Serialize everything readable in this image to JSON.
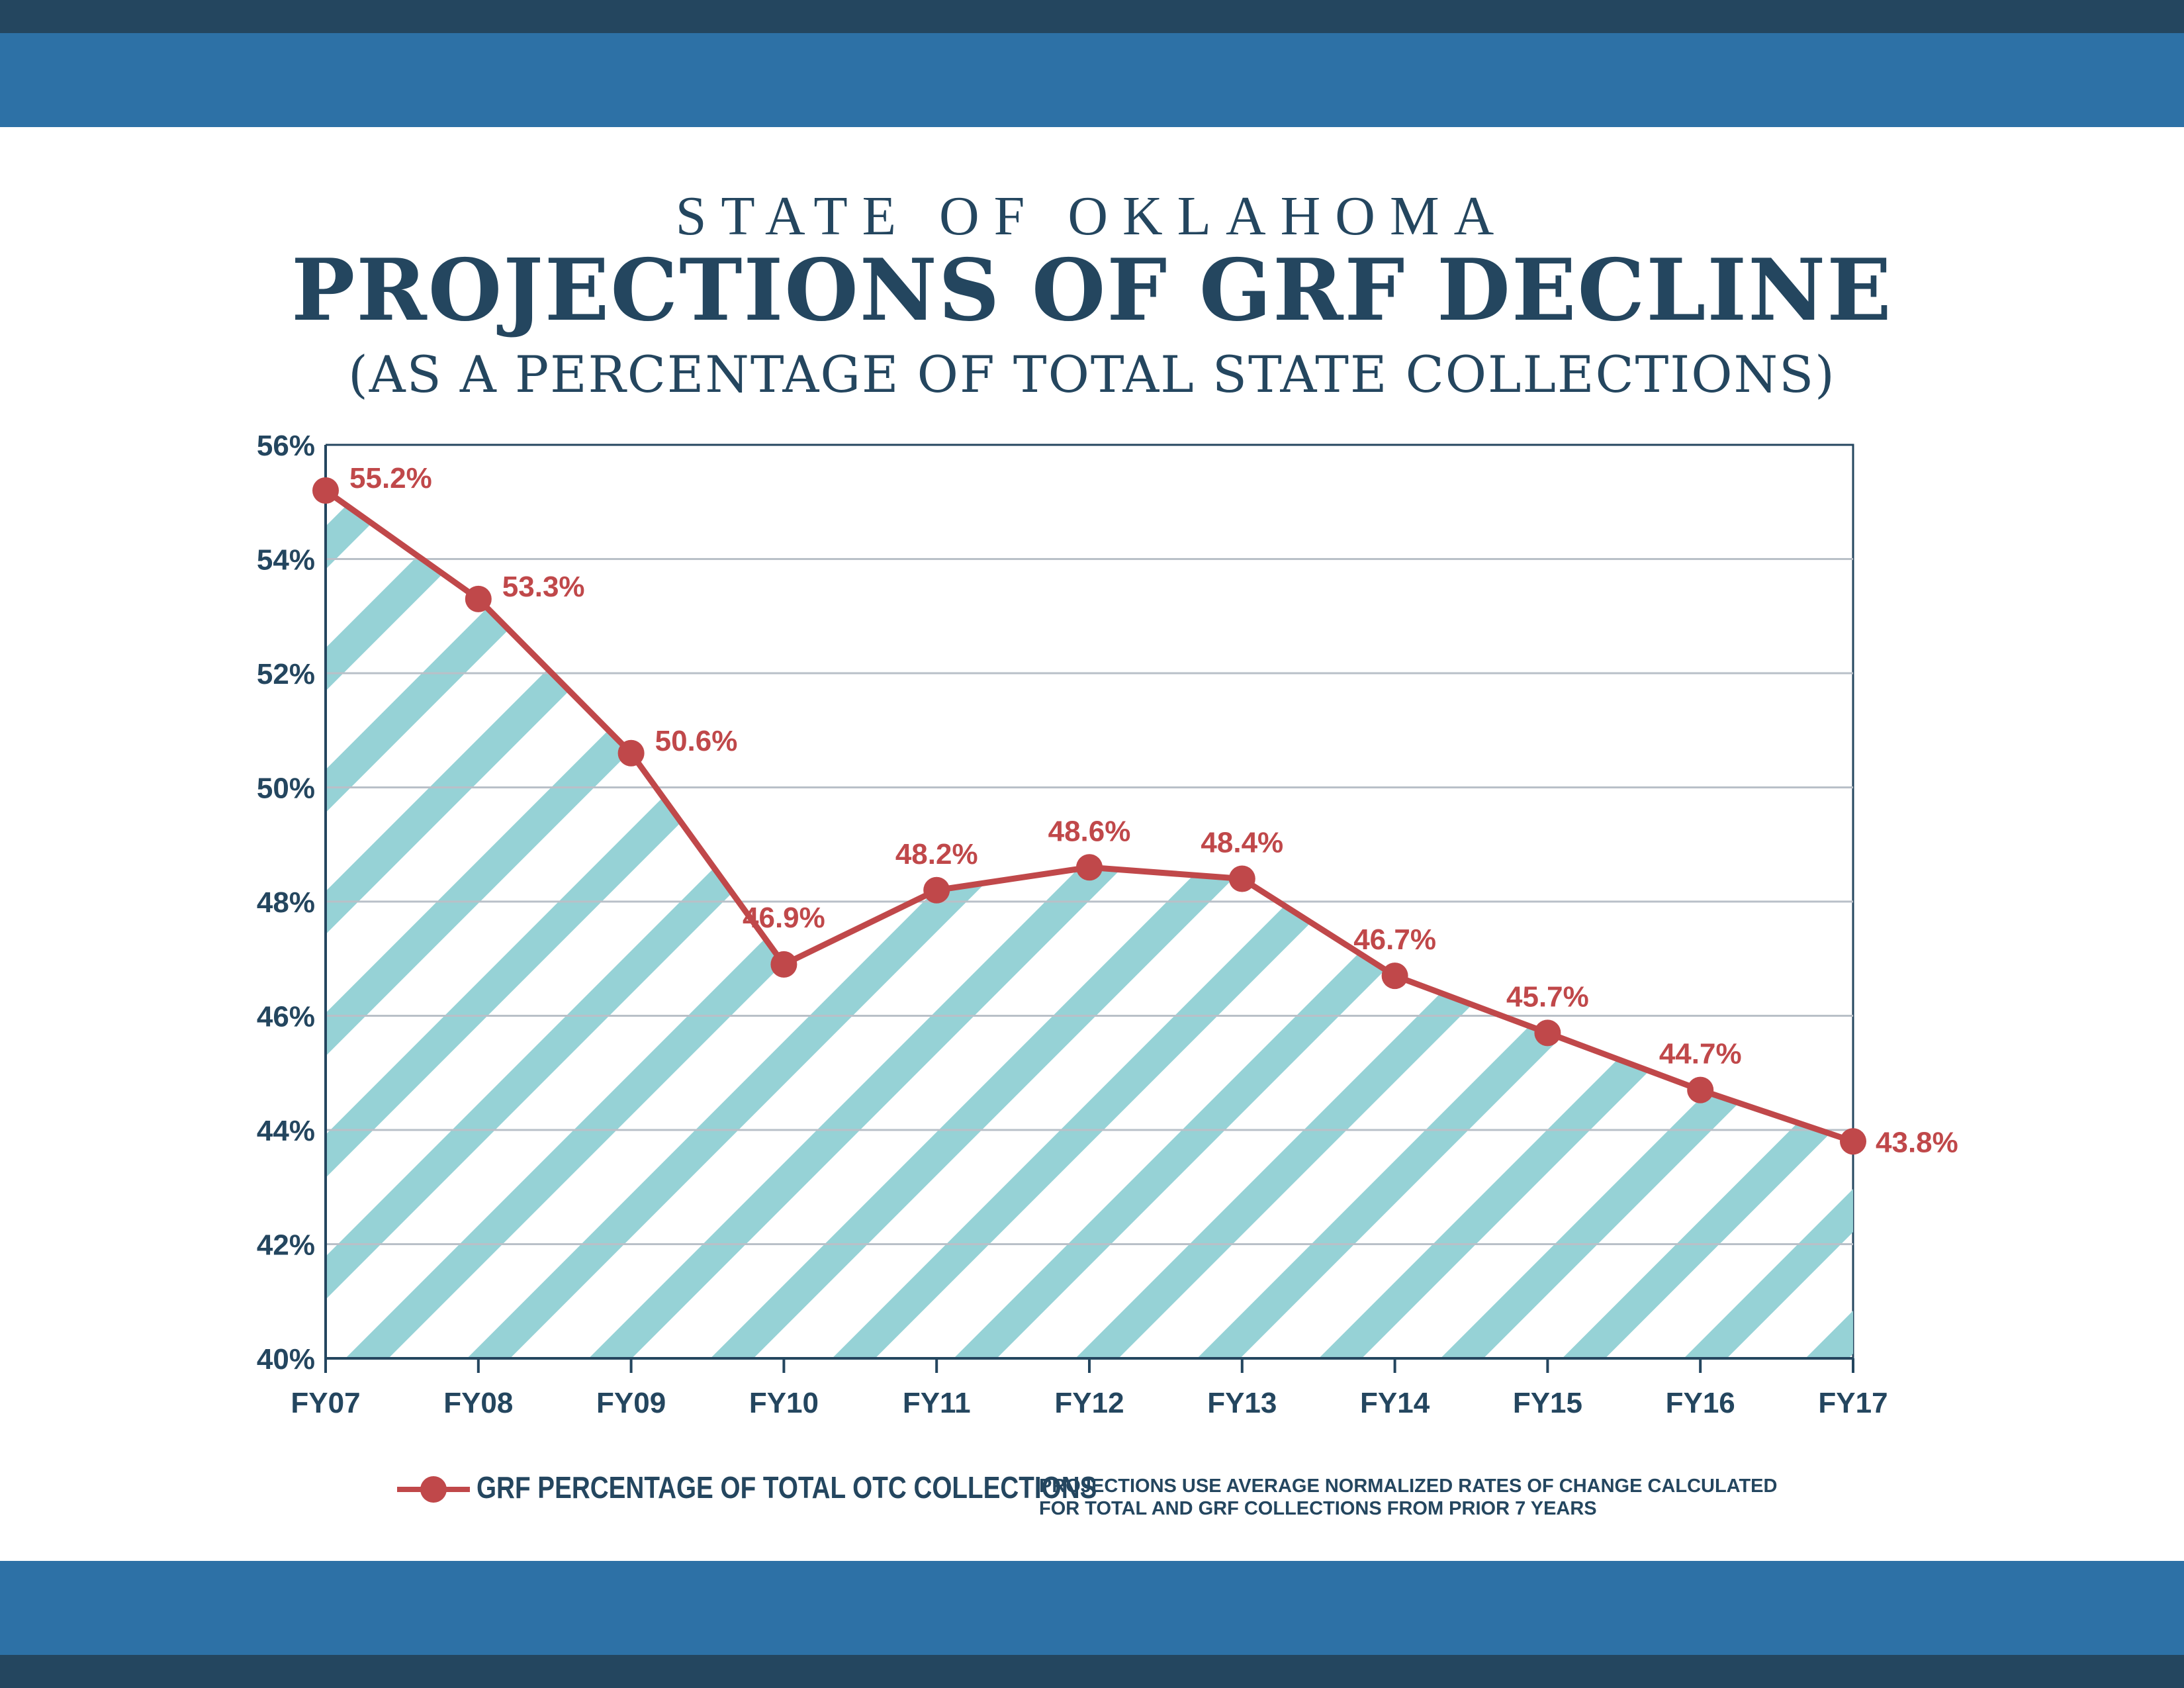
{
  "header": {
    "title_top": "STATE OF OKLAHOMA",
    "title_main": "PROJECTIONS OF GRF DECLINE",
    "title_sub": "(AS A PERCENTAGE OF TOTAL STATE COLLECTIONS)"
  },
  "chart_data": {
    "type": "area",
    "categories": [
      "FY07",
      "FY08",
      "FY09",
      "FY10",
      "FY11",
      "FY12",
      "FY13",
      "FY14",
      "FY15",
      "FY16",
      "FY17"
    ],
    "series": [
      {
        "name": "GRF PERCENTAGE OF TOTAL OTC COLLECTIONS",
        "values": [
          55.2,
          53.3,
          50.6,
          46.9,
          48.2,
          48.6,
          48.4,
          46.7,
          45.7,
          44.7,
          43.8
        ],
        "labels": [
          "55.2%",
          "53.3%",
          "50.6%",
          "46.9%",
          "48.2%",
          "48.6%",
          "48.4%",
          "46.7%",
          "45.7%",
          "44.7%",
          "43.8%"
        ]
      }
    ],
    "ylim": [
      40,
      56
    ],
    "yticks": [
      40,
      42,
      44,
      46,
      48,
      50,
      52,
      54,
      56
    ],
    "ytick_labels": [
      "40%",
      "42%",
      "44%",
      "46%",
      "48%",
      "50%",
      "52%",
      "54%",
      "56%"
    ],
    "grid": true,
    "fill": "diagonal-stripes",
    "colors": {
      "line": "#c0484a",
      "fill": "#96d2d6",
      "axis": "#24465f",
      "grid": "#b9c0c8"
    }
  },
  "legend": {
    "label": "GRF PERCENTAGE OF TOTAL OTC COLLECTIONS"
  },
  "footnote": {
    "line1": "PROJECTIONS USE AVERAGE NORMALIZED RATES OF CHANGE CALCULATED",
    "line2": "FOR TOTAL AND GRF COLLECTIONS FROM PRIOR 7 YEARS"
  },
  "colors": {
    "dark_band": "#24465f",
    "blue_band": "#2d71a6",
    "title": "#24465f"
  }
}
